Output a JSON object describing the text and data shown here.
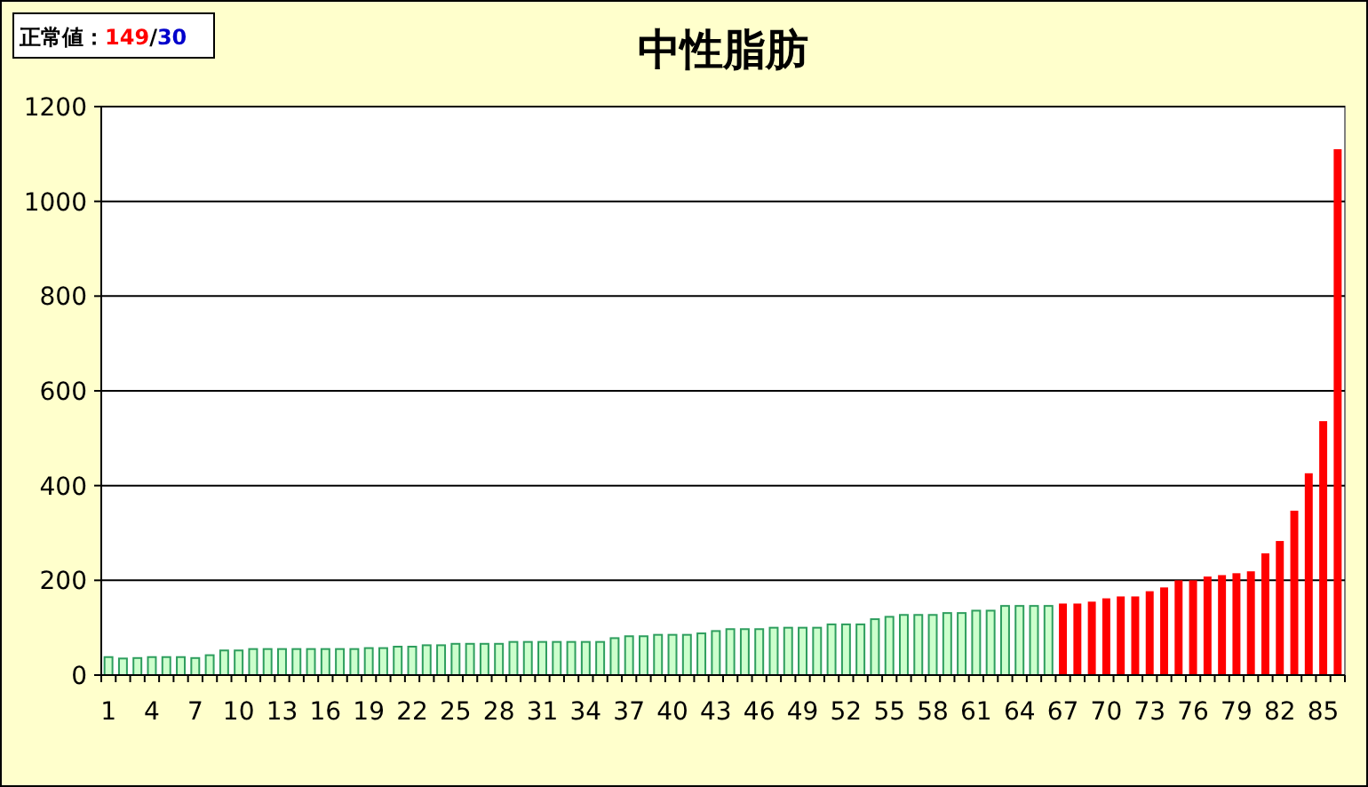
{
  "chart_data": {
    "type": "bar",
    "title": "中性脂肪",
    "annotations": [
      "正常値：149/30"
    ],
    "categories": [
      "1",
      null,
      null,
      "4",
      null,
      null,
      "7",
      null,
      null,
      "10",
      null,
      null,
      "13",
      null,
      null,
      "16",
      null,
      null,
      "19",
      null,
      null,
      "22",
      null,
      null,
      "25",
      null,
      null,
      "28",
      null,
      null,
      "31",
      null,
      null,
      "34",
      null,
      null,
      "37",
      null,
      null,
      "40",
      null,
      null,
      "43",
      null,
      null,
      "46",
      null,
      null,
      "49",
      null,
      null,
      "52",
      null,
      null,
      "55",
      null,
      null,
      "58",
      null,
      null,
      "61",
      null,
      null,
      "64",
      null,
      null,
      "67",
      null,
      null,
      "70",
      null,
      null,
      "73",
      null,
      null,
      "76",
      null,
      null,
      "79",
      null,
      null,
      "82",
      null,
      null,
      "85",
      null
    ],
    "series": [
      {
        "color": "#2e9e5e",
        "values": [
          38,
          35,
          36,
          38,
          38,
          38,
          36,
          42,
          52,
          52,
          55,
          55,
          55,
          55,
          55,
          55,
          55,
          55,
          57,
          57,
          60,
          60,
          63,
          63,
          66,
          66,
          66,
          66,
          70,
          70,
          70,
          70,
          70,
          70,
          70,
          78,
          82,
          82,
          85,
          85,
          85,
          88,
          93,
          97,
          97,
          97,
          100,
          100,
          100,
          100,
          107,
          107,
          107,
          118,
          123,
          127,
          127,
          127,
          131,
          131,
          136,
          136,
          146,
          146,
          146,
          146,
          null,
          null,
          null,
          null,
          null,
          null,
          null,
          null,
          null,
          null,
          null,
          null,
          null,
          null,
          null,
          null,
          null,
          null,
          null,
          null
        ]
      },
      {
        "color": "#ff0000",
        "values": [
          null,
          null,
          null,
          null,
          null,
          null,
          null,
          null,
          null,
          null,
          null,
          null,
          null,
          null,
          null,
          null,
          null,
          null,
          null,
          null,
          null,
          null,
          null,
          null,
          null,
          null,
          null,
          null,
          null,
          null,
          null,
          null,
          null,
          null,
          null,
          null,
          null,
          null,
          null,
          null,
          null,
          null,
          null,
          null,
          null,
          null,
          null,
          null,
          null,
          null,
          null,
          null,
          null,
          null,
          null,
          null,
          null,
          null,
          null,
          null,
          null,
          null,
          null,
          null,
          null,
          null,
          151,
          151,
          155,
          162,
          166,
          166,
          177,
          185,
          200,
          200,
          208,
          211,
          215,
          219,
          257,
          283,
          347,
          426,
          536,
          1110
        ]
      }
    ],
    "ylim": [
      0,
      1200
    ],
    "yticks": [
      0,
      200,
      400,
      600,
      800,
      1000,
      1200
    ],
    "grid": "y"
  }
}
